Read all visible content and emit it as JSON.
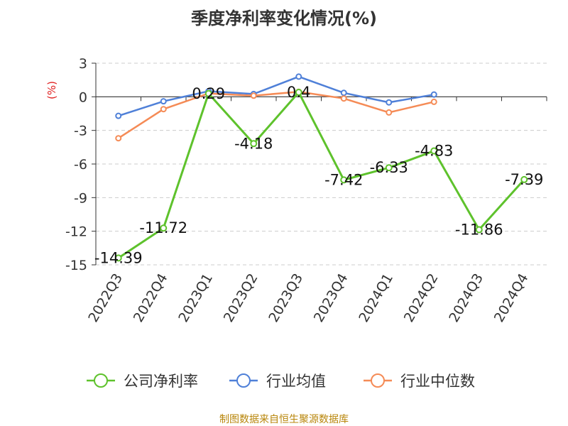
{
  "chart_data": {
    "type": "line",
    "title": "季度净利率变化情况(%)",
    "ylabel": "(%)",
    "ylim": [
      -15,
      3
    ],
    "yticks": [
      3,
      0,
      -3,
      -6,
      -9,
      -12,
      -15
    ],
    "grid": true,
    "legend_position": "bottom",
    "categories": [
      "2022Q3",
      "2022Q4",
      "2023Q1",
      "2023Q2",
      "2023Q3",
      "2023Q4",
      "2024Q1",
      "2024Q2",
      "2024Q3",
      "2024Q4"
    ],
    "series": [
      {
        "name": "公司净利率",
        "color": "#5ec22c",
        "values": [
          -14.39,
          -11.72,
          0.29,
          -4.18,
          0.4,
          -7.42,
          -6.33,
          -4.83,
          -11.86,
          -7.39
        ],
        "labels": [
          "-14.39",
          "-11.72",
          "0.29",
          "-4.18",
          "0.4",
          "-7.42",
          "-6.33",
          "-4.83",
          "-11.86",
          "-7.39"
        ]
      },
      {
        "name": "行业均值",
        "color": "#4f80d8",
        "values": [
          -1.7,
          -0.4,
          0.5,
          0.25,
          1.8,
          0.35,
          -0.5,
          0.2,
          null,
          null
        ]
      },
      {
        "name": "行业中位数",
        "color": "#f58b56",
        "values": [
          -3.7,
          -1.1,
          0.3,
          0.1,
          0.45,
          -0.15,
          -1.4,
          -0.45,
          null,
          null
        ]
      }
    ]
  },
  "footer": "制图数据来自恒生聚源数据库"
}
